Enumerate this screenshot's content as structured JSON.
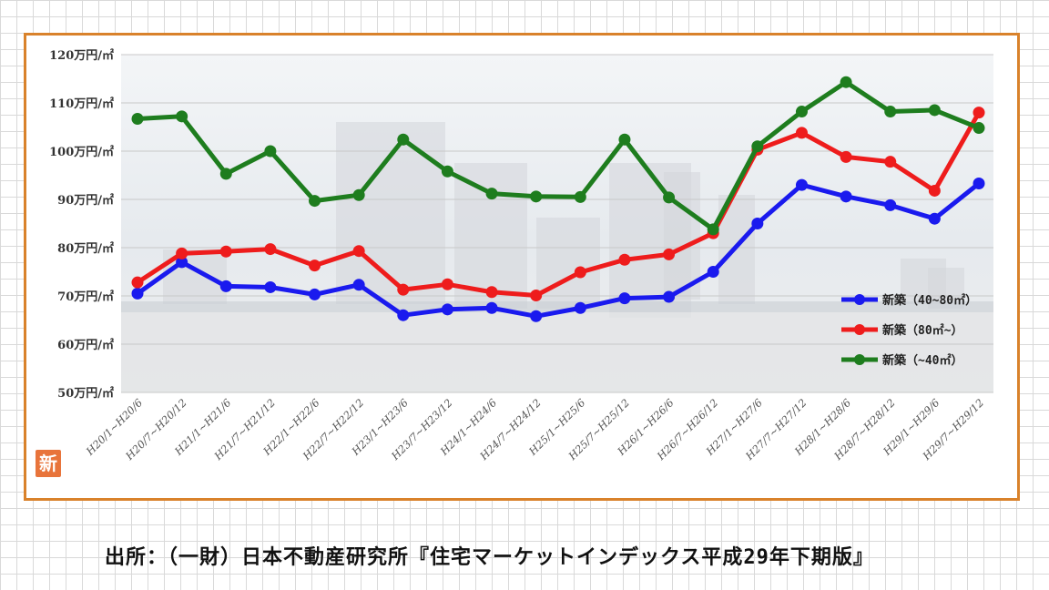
{
  "chart_data": {
    "type": "line",
    "title": "",
    "xlabel": "",
    "ylabel": "",
    "ylim": [
      50,
      120
    ],
    "y_ticks": [
      "50万円/㎡",
      "60万円/㎡",
      "70万円/㎡",
      "80万円/㎡",
      "90万円/㎡",
      "100万円/㎡",
      "110万円/㎡",
      "120万円/㎡"
    ],
    "grid": true,
    "legend_position": "right",
    "categories": [
      "H20/1~H20/6",
      "H20/7~H20/12",
      "H21/1~H21/6",
      "H21/7~H21/12",
      "H22/1~H22/6",
      "H22/7~H22/12",
      "H23/1~H23/6",
      "H23/7~H23/12",
      "H24/1~H24/6",
      "H24/7~H24/12",
      "H25/1~H25/6",
      "H25/7~H25/12",
      "H26/1~H26/6",
      "H26/7~H26/12",
      "H27/1~H27/6",
      "H27/7~H27/12",
      "H28/1~H28/6",
      "H28/7~H28/12",
      "H29/1~H29/6",
      "H29/7~H29/12"
    ],
    "series": [
      {
        "name": "新築（40~80㎡）",
        "color": "#1a1aee",
        "values": [
          70.5,
          77,
          72,
          71.8,
          70.3,
          72.3,
          66,
          67.2,
          67.5,
          65.8,
          67.5,
          69.5,
          69.8,
          75,
          85,
          93,
          90.6,
          88.8,
          86,
          93.3
        ]
      },
      {
        "name": "新築（80㎡~）",
        "color": "#ee1c1c",
        "values": [
          72.8,
          78.8,
          79.2,
          79.7,
          76.3,
          79.3,
          71.3,
          72.4,
          70.8,
          70.1,
          74.9,
          77.5,
          78.6,
          83,
          100.3,
          103.8,
          98.8,
          97.8,
          91.8,
          108
        ]
      },
      {
        "name": "新築（~40㎡）",
        "color": "#1e7d1e",
        "values": [
          106.7,
          107.2,
          95.3,
          100,
          89.7,
          90.9,
          102.4,
          95.8,
          91.2,
          90.6,
          90.5,
          102.4,
          90.4,
          83.8,
          101,
          108.2,
          114.3,
          108.2,
          108.5,
          104.8
        ]
      }
    ]
  },
  "badge": "新",
  "source_text": "出所：（一財）日本不動産研究所『住宅マーケットインデックス平成29年下期版』"
}
